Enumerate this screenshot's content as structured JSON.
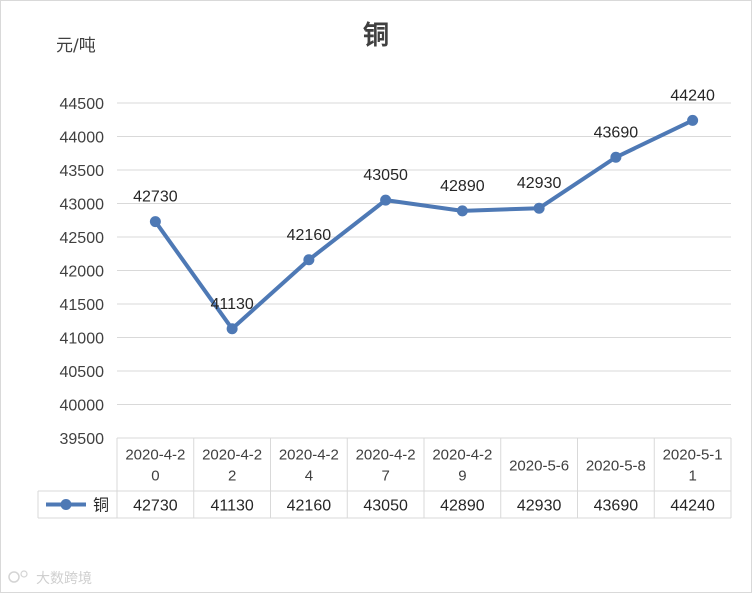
{
  "chart_data": {
    "type": "line",
    "title": "铜",
    "ylabel": "元/吨",
    "xlabel": "",
    "ylim": [
      39500,
      44500
    ],
    "y_ticks": [
      39500,
      40000,
      40500,
      41000,
      41500,
      42000,
      42500,
      43000,
      43500,
      44000,
      44500
    ],
    "grid": true,
    "legend": "data-table-left",
    "categories": [
      [
        "2020-4-2",
        "0"
      ],
      [
        "2020-4-2",
        "2"
      ],
      [
        "2020-4-2",
        "4"
      ],
      [
        "2020-4-2",
        "7"
      ],
      [
        "2020-4-2",
        "9"
      ],
      [
        "2020-5-6"
      ],
      [
        "2020-5-8"
      ],
      [
        "2020-5-1",
        "1"
      ]
    ],
    "series": [
      {
        "name": "铜",
        "color": "#4e79b5",
        "values": [
          42730,
          41130,
          42160,
          43050,
          42890,
          42930,
          43690,
          44240
        ]
      }
    ]
  },
  "watermark": "大数跨境"
}
